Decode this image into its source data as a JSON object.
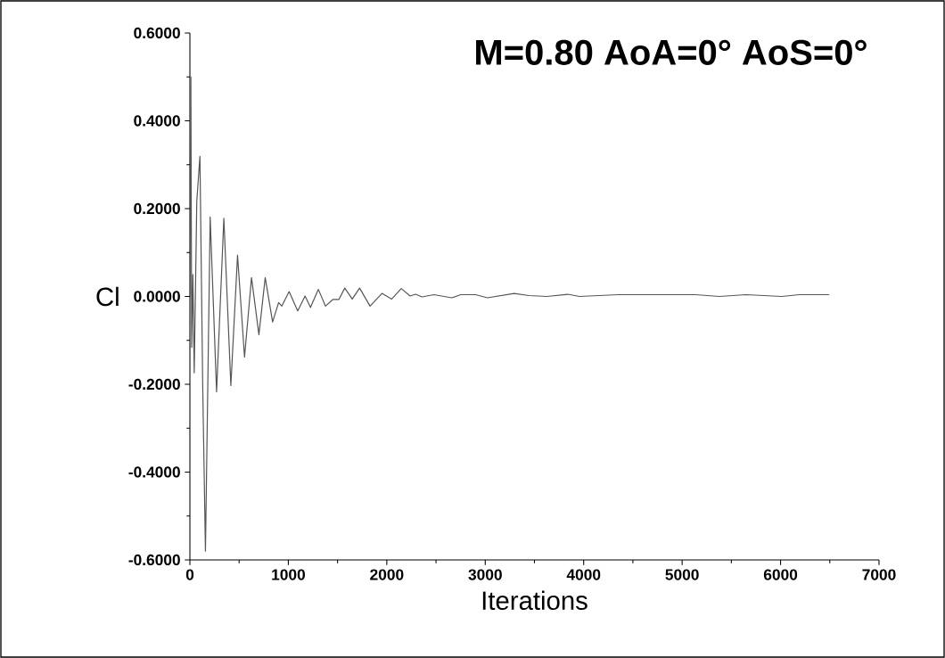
{
  "chart_data": {
    "type": "line",
    "title": "M=0.80 AoA=0° AoS=0°",
    "xlabel": "Iterations",
    "ylabel": "Cl",
    "xlim": [
      0,
      7000
    ],
    "xticks": [
      0,
      1000,
      2000,
      3000,
      4000,
      5000,
      6000,
      7000
    ],
    "ylim": [
      -0.6,
      0.6
    ],
    "yticks": [
      {
        "value": -0.6,
        "label": "-0.6000"
      },
      {
        "value": -0.4,
        "label": "-0.4000"
      },
      {
        "value": -0.2,
        "label": "-0.2000"
      },
      {
        "value": 0,
        "label": "0.0000"
      },
      {
        "value": 0.2,
        "label": "0.2000"
      },
      {
        "value": 0.4,
        "label": "0.4000"
      },
      {
        "value": 0.6,
        "label": "0.6000"
      }
    ],
    "grid": false,
    "marker": "none",
    "line_style": "solid",
    "series": [
      {
        "color": "#555555",
        "x": [
          0,
          10,
          18,
          30,
          44,
          70,
          102,
          130,
          158,
          206,
          271,
          345,
          416,
          484,
          555,
          626,
          701,
          765,
          840,
          901,
          934,
          1008,
          1095,
          1170,
          1225,
          1305,
          1377,
          1451,
          1513,
          1573,
          1649,
          1724,
          1830,
          1951,
          2050,
          2147,
          2237,
          2292,
          2358,
          2479,
          2660,
          2751,
          2901,
          3023,
          3294,
          3445,
          3626,
          3838,
          3958,
          4351,
          5136,
          5378,
          5649,
          6012,
          6193,
          6495
        ],
        "values": [
          0.0,
          0.5,
          -0.116,
          0.05,
          -0.174,
          0.217,
          0.319,
          -0.2,
          -0.58,
          0.181,
          -0.217,
          0.178,
          -0.203,
          0.094,
          -0.138,
          0.043,
          -0.087,
          0.043,
          -0.058,
          -0.014,
          -0.022,
          0.011,
          -0.033,
          0.001,
          -0.025,
          0.016,
          -0.022,
          -0.007,
          -0.007,
          0.019,
          -0.006,
          0.019,
          -0.022,
          0.007,
          -0.006,
          0.018,
          0.001,
          0.005,
          -0.001,
          0.004,
          -0.003,
          0.004,
          0.004,
          -0.003,
          0.007,
          0.002,
          0.0,
          0.005,
          0.0,
          0.004,
          0.004,
          0.0,
          0.004,
          0.0,
          0.004,
          0.004
        ]
      }
    ]
  }
}
